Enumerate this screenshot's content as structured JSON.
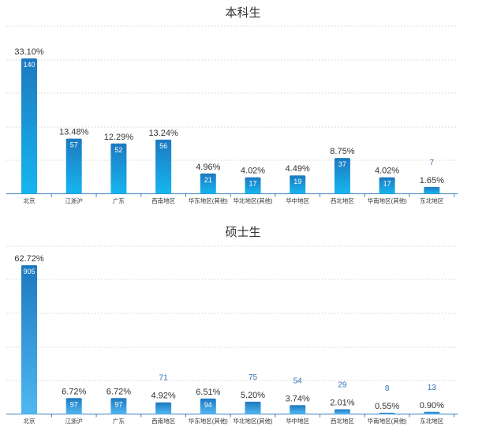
{
  "colors": {
    "bar_top": "#1d79c0",
    "bar_bottom_1": "#16b6f0",
    "bar_bottom_2": "#4fb8f2",
    "axis": "#3a7fc0",
    "grid": "#d2d2d2",
    "text": "#333333",
    "count_outside": "#2f6fb5"
  },
  "chart_data": [
    {
      "type": "bar",
      "title": "本科生",
      "categories": [
        "北京",
        "江浙沪",
        "广东",
        "西南地区",
        "华东地区(其他)",
        "华北地区(其他)",
        "华中地区",
        "西北地区",
        "华南地区(其他)",
        "东北地区"
      ],
      "values": [
        140,
        57,
        52,
        56,
        21,
        17,
        19,
        37,
        17,
        7
      ],
      "percent_labels": [
        "33.10%",
        "13.48%",
        "12.29%",
        "13.24%",
        "4.96%",
        "4.02%",
        "4.49%",
        "8.75%",
        "4.02%",
        "1.65%"
      ],
      "count_labels": [
        "140",
        "57",
        "52",
        "56",
        "21",
        "17",
        "19",
        "37",
        "17",
        "7"
      ],
      "ylim": [
        0,
        150
      ],
      "grid": true,
      "legend": "none"
    },
    {
      "type": "bar",
      "title": "硕士生",
      "categories": [
        "北京",
        "江浙沪",
        "广东",
        "西南地区",
        "华东地区(其他)",
        "华北地区(其他)",
        "华中地区",
        "西北地区",
        "华南地区(其他)",
        "东北地区"
      ],
      "values": [
        905,
        97,
        97,
        71,
        94,
        75,
        54,
        29,
        8,
        13
      ],
      "percent_labels": [
        "62.72%",
        "6.72%",
        "6.72%",
        "4.92%",
        "6.51%",
        "5.20%",
        "3.74%",
        "2.01%",
        "0.55%",
        "0.90%"
      ],
      "count_labels": [
        "905",
        "97",
        "97",
        "71",
        "94",
        "75",
        "54",
        "29",
        "8",
        "13"
      ],
      "ylim": [
        0,
        960
      ],
      "grid": true,
      "legend": "none"
    }
  ]
}
